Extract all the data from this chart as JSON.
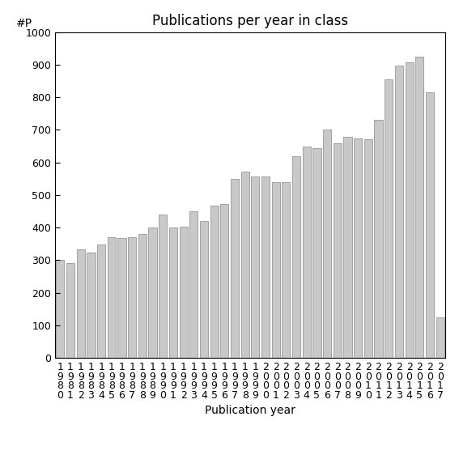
{
  "title": "Publications per year in class",
  "xlabel": "Publication year",
  "ylabel": "#P",
  "ylim": [
    0,
    1000
  ],
  "yticks": [
    0,
    100,
    200,
    300,
    400,
    500,
    600,
    700,
    800,
    900,
    1000
  ],
  "bar_color": "#c8c8c8",
  "bar_edge_color": "#888888",
  "categories": [
    "1\n9\n8\n0",
    "1\n9\n8\n1",
    "1\n9\n8\n2",
    "1\n9\n8\n3",
    "1\n9\n8\n4",
    "1\n9\n8\n5",
    "1\n9\n8\n6",
    "1\n9\n8\n7",
    "1\n9\n8\n8",
    "1\n9\n8\n9",
    "1\n9\n9\n0",
    "1\n9\n9\n1",
    "1\n9\n9\n2",
    "1\n9\n9\n3",
    "1\n9\n9\n4",
    "1\n9\n9\n5",
    "1\n9\n9\n6",
    "1\n9\n9\n7",
    "1\n9\n9\n8",
    "1\n9\n9\n9",
    "2\n0\n0\n0",
    "2\n0\n0\n1",
    "2\n0\n0\n2",
    "2\n0\n0\n3",
    "2\n0\n0\n4",
    "2\n0\n0\n5",
    "2\n0\n0\n6",
    "2\n0\n0\n7",
    "2\n0\n0\n8",
    "2\n0\n0\n9",
    "2\n0\n1\n0",
    "2\n0\n1\n1",
    "2\n0\n1\n2",
    "2\n0\n1\n3",
    "2\n0\n1\n4",
    "2\n0\n1\n5",
    "2\n0\n1\n6",
    "2\n0\n1\n7"
  ],
  "values": [
    302,
    292,
    333,
    323,
    348,
    370,
    368,
    370,
    380,
    401,
    440,
    400,
    403,
    450,
    420,
    468,
    472,
    550,
    572,
    557,
    557,
    540,
    540,
    620,
    650,
    645,
    700,
    660,
    680,
    675,
    672,
    730,
    855,
    898,
    907,
    925,
    815,
    125
  ],
  "background_color": "#ffffff",
  "title_fontsize": 12,
  "label_fontsize": 10,
  "tick_fontsize": 9
}
